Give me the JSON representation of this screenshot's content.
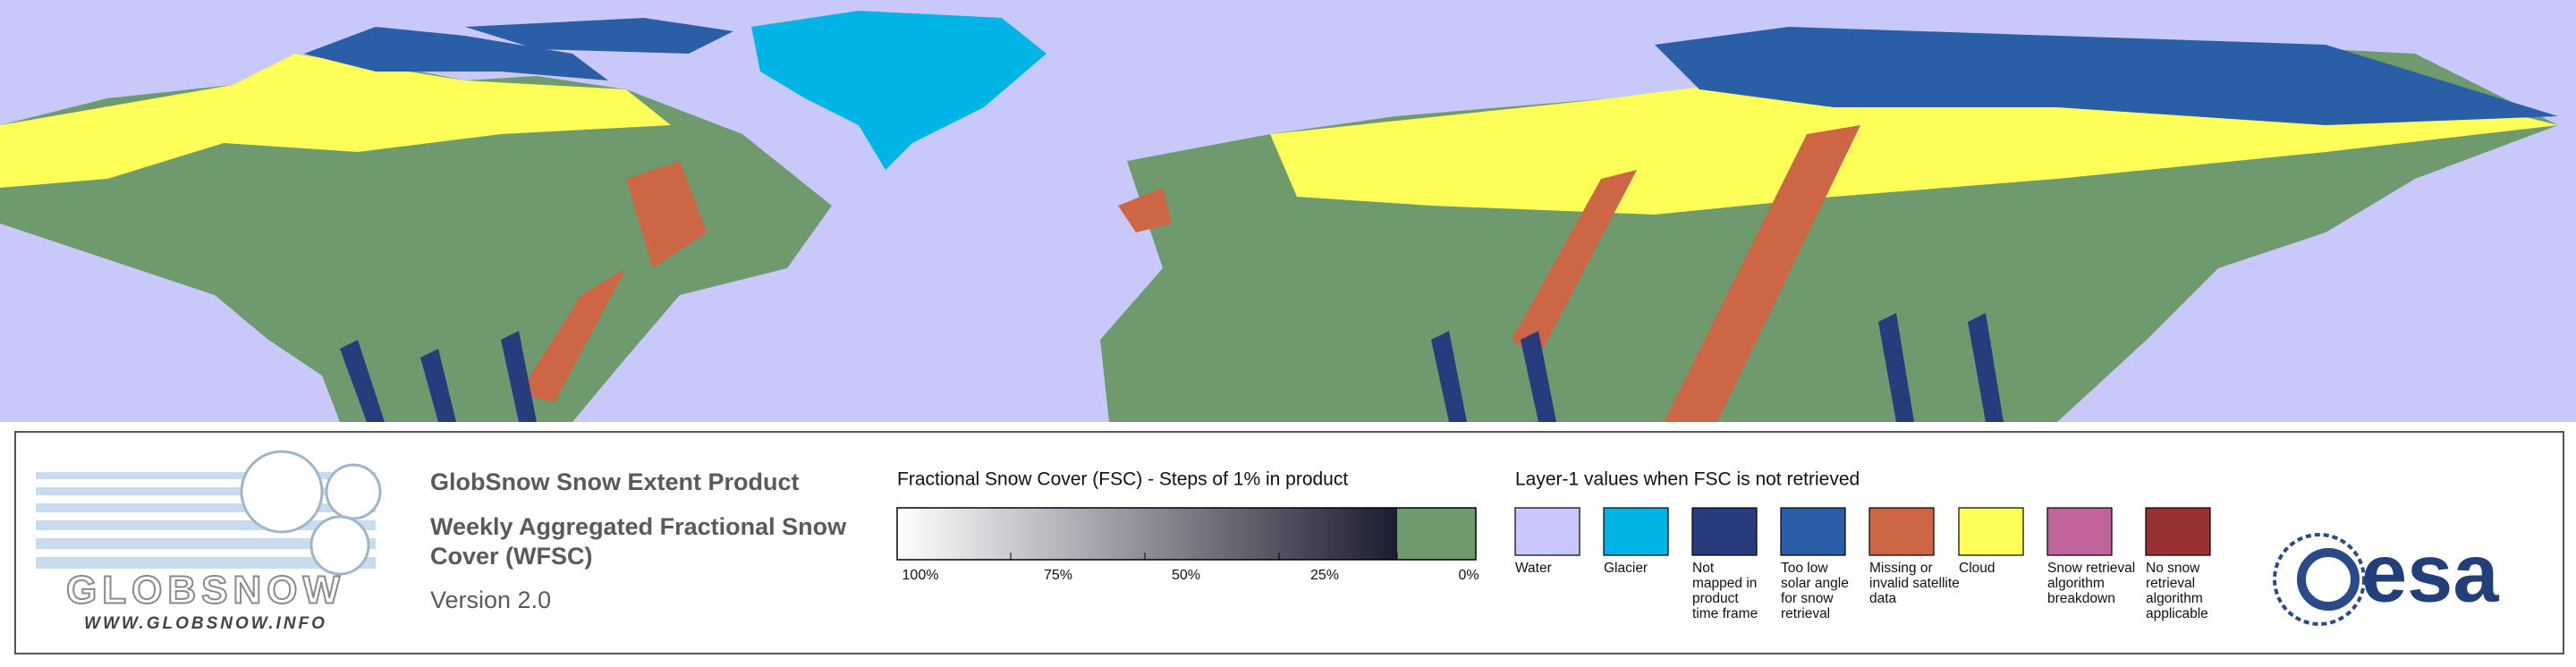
{
  "header": {
    "title": "GlobSnow Snow Extent Product",
    "subtitle_lines": [
      "Weekly Aggregated Fractional Snow",
      "Cover (WFSC)"
    ],
    "version": "Version 2.0"
  },
  "logo": {
    "name": "GLOBSNOW",
    "url": "WWW.GLOBSNOW.INFO",
    "agency": "esa"
  },
  "colorbar": {
    "title": "Fractional Snow Cover (FSC) - Steps of 1% in product",
    "ticks": [
      "100%",
      "75%",
      "50%",
      "25%",
      "0%"
    ],
    "color_start": "#ffffff",
    "color_end": "#1c1c30",
    "zero_color": "#6f9a6d"
  },
  "layer_legend": {
    "title": "Layer-1 values when FSC is not retrieved",
    "items": [
      {
        "label_lines": [
          "Water"
        ],
        "color": "#c8c8fa"
      },
      {
        "label_lines": [
          "Glacier"
        ],
        "color": "#00b4e6"
      },
      {
        "label_lines": [
          "Not",
          "mapped in",
          "product",
          "time frame"
        ],
        "color": "#283c7d"
      },
      {
        "label_lines": [
          "Too low",
          "solar angle",
          "for snow",
          "retrieval"
        ],
        "color": "#2a5fa8"
      },
      {
        "label_lines": [
          "Missing or",
          "invalid satellite",
          "data"
        ],
        "color": "#cc6644"
      },
      {
        "label_lines": [
          "Cloud"
        ],
        "color": "#ffff5a"
      },
      {
        "label_lines": [
          "Snow retrieval",
          "algorithm",
          "breakdown"
        ],
        "color": "#c0649b"
      },
      {
        "label_lines": [
          "No snow",
          "retrieval",
          "algorithm",
          "applicable"
        ],
        "color": "#993333"
      }
    ]
  }
}
